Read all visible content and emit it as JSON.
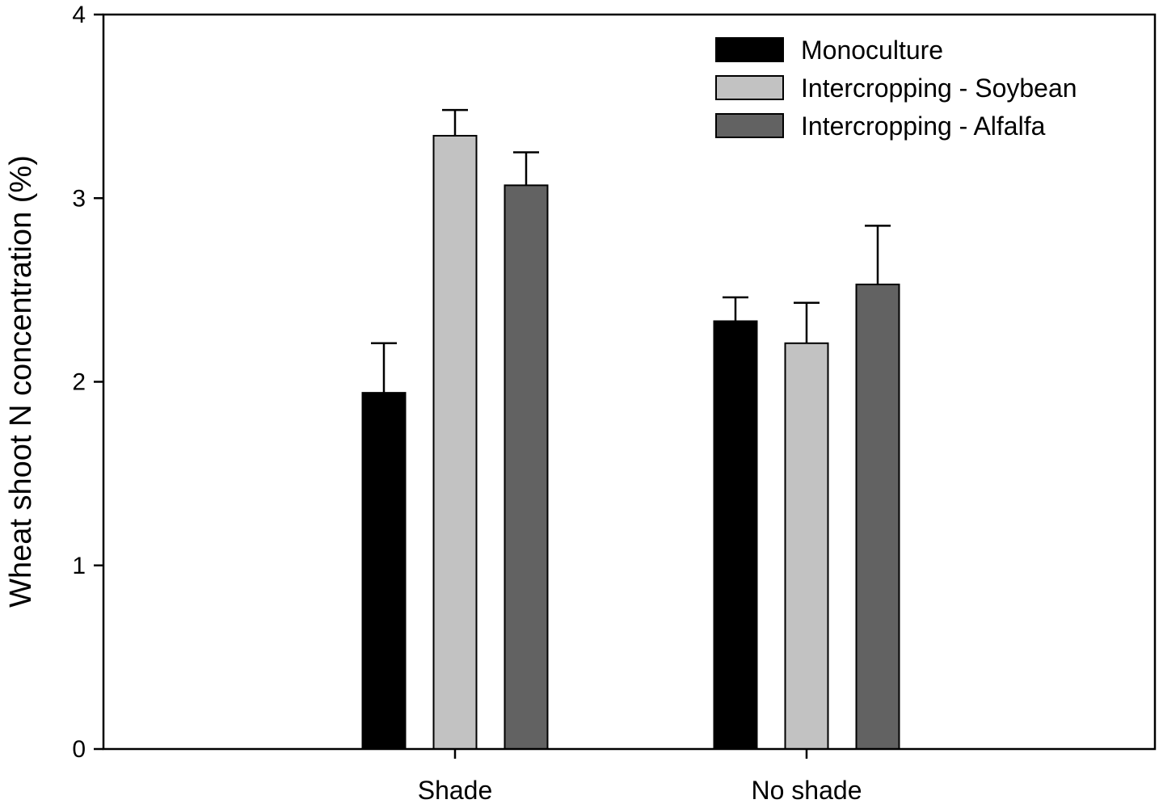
{
  "chart_data": {
    "type": "bar",
    "title": "",
    "xlabel": "",
    "ylabel": "Wheat shoot N concentration (%)",
    "ylim": [
      0,
      4
    ],
    "yticks": [
      "0",
      "1",
      "2",
      "3",
      "4"
    ],
    "categories": [
      "Shade",
      "No shade"
    ],
    "series": [
      {
        "name": "Monoculture",
        "values": [
          1.94,
          2.33
        ],
        "errors": [
          0.27,
          0.13
        ],
        "color": "#000000"
      },
      {
        "name": "Intercropping - Soybean",
        "values": [
          3.34,
          2.21
        ],
        "errors": [
          0.14,
          0.22
        ],
        "color": "#c2c2c2"
      },
      {
        "name": "Intercropping - Alfalfa",
        "values": [
          3.07,
          2.53
        ],
        "errors": [
          0.18,
          0.32
        ],
        "color": "#626262"
      }
    ],
    "legend_position": "top-right",
    "grid": false
  }
}
